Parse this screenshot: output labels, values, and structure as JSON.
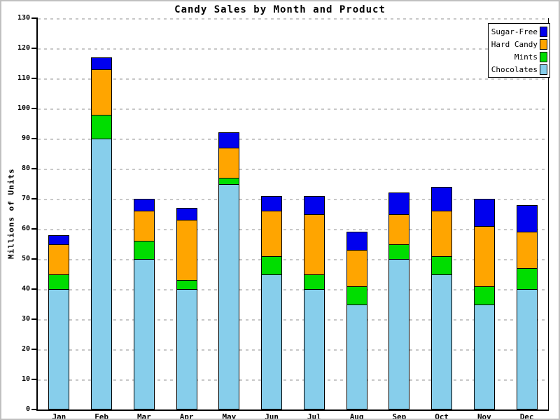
{
  "window": {
    "background": "#FFFFFF",
    "outer_border_color": "#C0C0C0"
  },
  "chart_data": {
    "type": "bar",
    "stacked": true,
    "title": "Candy Sales by Month and Product",
    "ylabel": "Millions of Units",
    "xlabel": "",
    "categories": [
      "Jan",
      "Feb",
      "Mar",
      "Apr",
      "May",
      "Jun",
      "Jul",
      "Aug",
      "Sep",
      "Oct",
      "Nov",
      "Dec"
    ],
    "series": [
      {
        "name": "Chocolates",
        "color": "#87CEEB",
        "values": [
          40,
          90,
          50,
          40,
          75,
          45,
          40,
          35,
          50,
          45,
          35,
          40
        ]
      },
      {
        "name": "Mints",
        "color": "#00DD00",
        "values": [
          5,
          8,
          6,
          3,
          2,
          6,
          5,
          6,
          5,
          6,
          6,
          7
        ]
      },
      {
        "name": "Hard Candy",
        "color": "#FFA500",
        "values": [
          10,
          15,
          10,
          20,
          10,
          15,
          20,
          12,
          10,
          15,
          20,
          12
        ]
      },
      {
        "name": "Sugar-Free",
        "color": "#0000EE",
        "values": [
          3,
          4,
          4,
          4,
          5,
          5,
          6,
          6,
          7,
          8,
          9,
          9
        ]
      }
    ],
    "totals": [
      58,
      117,
      70,
      67,
      92,
      71,
      71,
      59,
      72,
      74,
      70,
      68
    ],
    "ylim": [
      0,
      130
    ],
    "ytick_step": 10,
    "grid": "horizontal-dashed",
    "gridline_color": "#C8C8C8",
    "axis_color": "#000000",
    "legend_position": "top-right",
    "legend_order": [
      "Sugar-Free",
      "Hard Candy",
      "Mints",
      "Chocolates"
    ]
  }
}
